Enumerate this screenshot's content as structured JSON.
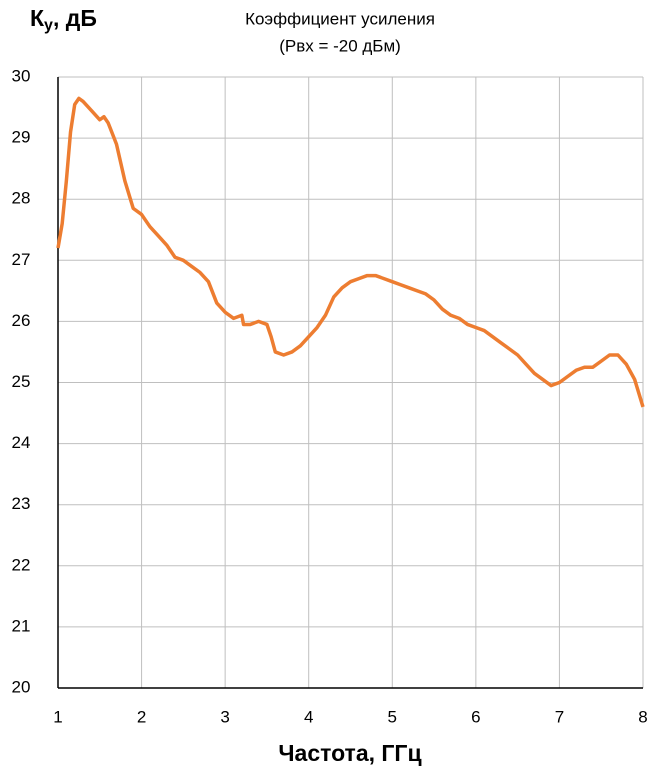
{
  "chart_data": {
    "type": "line",
    "title": "Коэффициент усиления",
    "subtitle": "(Pвх = -20 дБм)",
    "y_label": [
      "К",
      "у",
      ", дБ"
    ],
    "x_label": "Частота, ГГц",
    "grid": true,
    "xlim": [
      1,
      8
    ],
    "xticks": [
      1,
      2,
      3,
      4,
      5,
      6,
      7,
      8
    ],
    "ylim": [
      20,
      30
    ],
    "yticks": [
      20,
      21,
      22,
      23,
      24,
      25,
      26,
      27,
      28,
      29,
      30
    ],
    "x": [
      1.0,
      1.05,
      1.1,
      1.15,
      1.2,
      1.25,
      1.3,
      1.4,
      1.5,
      1.55,
      1.6,
      1.7,
      1.8,
      1.9,
      2.0,
      2.1,
      2.2,
      2.3,
      2.4,
      2.5,
      2.6,
      2.7,
      2.8,
      2.9,
      3.0,
      3.1,
      3.2,
      3.22,
      3.3,
      3.4,
      3.5,
      3.55,
      3.6,
      3.7,
      3.8,
      3.9,
      4.0,
      4.1,
      4.2,
      4.3,
      4.4,
      4.5,
      4.6,
      4.7,
      4.8,
      4.9,
      5.0,
      5.1,
      5.2,
      5.3,
      5.4,
      5.5,
      5.6,
      5.7,
      5.8,
      5.9,
      6.0,
      6.1,
      6.2,
      6.3,
      6.4,
      6.5,
      6.6,
      6.7,
      6.8,
      6.9,
      7.0,
      7.1,
      7.2,
      7.3,
      7.4,
      7.5,
      7.6,
      7.7,
      7.8,
      7.9,
      8.0
    ],
    "series": [
      {
        "color": "#ED7D31",
        "values": [
          27.2,
          27.6,
          28.3,
          29.1,
          29.55,
          29.65,
          29.6,
          29.45,
          29.3,
          29.35,
          29.25,
          28.9,
          28.3,
          27.85,
          27.75,
          27.55,
          27.4,
          27.25,
          27.05,
          27.0,
          26.9,
          26.8,
          26.65,
          26.3,
          26.15,
          26.05,
          26.1,
          25.95,
          25.95,
          26.0,
          25.95,
          25.75,
          25.5,
          25.45,
          25.5,
          25.6,
          25.75,
          25.9,
          26.1,
          26.4,
          26.55,
          26.65,
          26.7,
          26.75,
          26.75,
          26.7,
          26.65,
          26.6,
          26.55,
          26.5,
          26.45,
          26.35,
          26.2,
          26.1,
          26.05,
          25.95,
          25.9,
          25.85,
          25.75,
          25.65,
          25.55,
          25.45,
          25.3,
          25.15,
          25.05,
          24.95,
          25.0,
          25.1,
          25.2,
          25.25,
          25.25,
          25.35,
          25.45,
          25.45,
          25.3,
          25.05,
          24.6
        ]
      }
    ]
  }
}
